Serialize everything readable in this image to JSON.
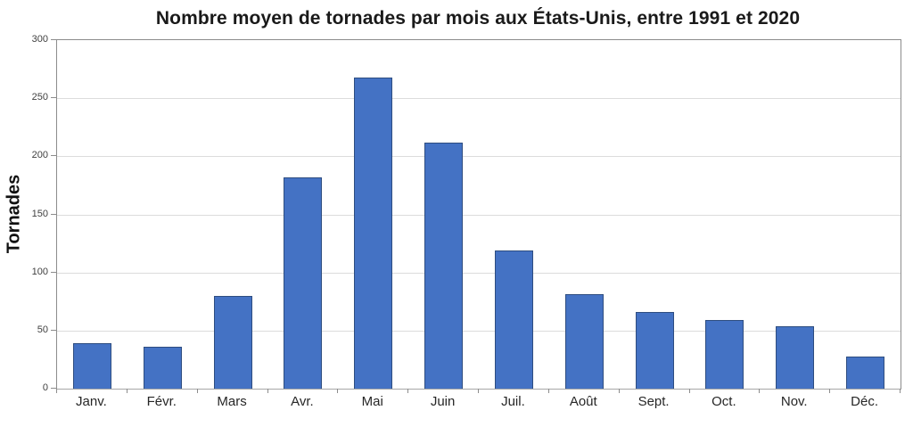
{
  "title": "Nombre moyen de tornades par mois aux États-Unis, entre 1991 et 2020",
  "chart_data": {
    "type": "bar",
    "title": "Nombre moyen de tornades par mois aux États-Unis, entre 1991 et 2020",
    "categories": [
      "Janv.",
      "Févr.",
      "Mars",
      "Avr.",
      "Mai",
      "Juin",
      "Juil.",
      "Août",
      "Sept.",
      "Oct.",
      "Nov.",
      "Déc."
    ],
    "values": [
      39,
      36,
      80,
      182,
      268,
      212,
      119,
      81,
      66,
      59,
      54,
      28
    ],
    "xlabel": "",
    "ylabel": "Tornades",
    "ylim": [
      0,
      300
    ],
    "ytick_step": 50,
    "yticks": [
      0,
      50,
      100,
      150,
      200,
      250,
      300
    ],
    "grid": true,
    "legend": "none",
    "colors": {
      "bar_fill": "#4472C4",
      "bar_border": "#2E4D80",
      "gridline": "#DCDCDC",
      "axis_line": "#8C8C8C",
      "title_text": "#1A1A1A",
      "tick_text": "#404040"
    }
  }
}
